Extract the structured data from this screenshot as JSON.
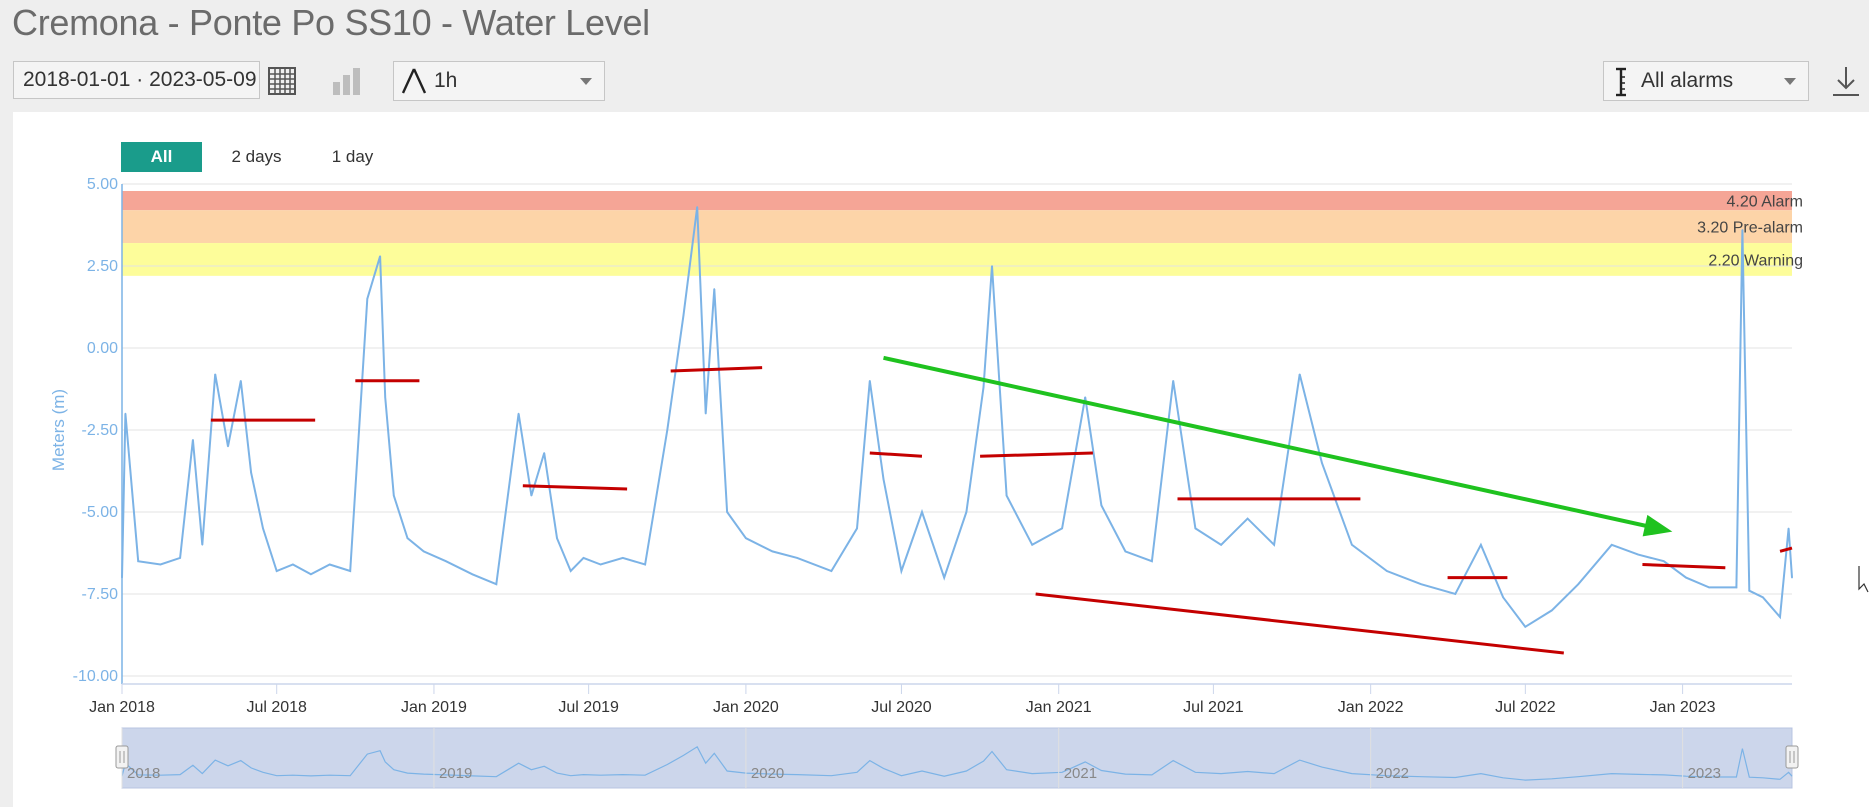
{
  "title": "Cremona - Ponte Po SS10 - Water Level",
  "toolbar": {
    "date_range": "2018-01-01 · 2023-05-09",
    "interval_label": "1h",
    "alarms_label": "All alarms",
    "icons": {
      "table": "table-view-icon",
      "chart": "bar-chart-icon",
      "delta": "delta-icon",
      "alarm": "alarm-range-icon",
      "download": "download-icon"
    }
  },
  "range_buttons": [
    {
      "label": "All",
      "active": true
    },
    {
      "label": "2 days",
      "active": false
    },
    {
      "label": "1 day",
      "active": false
    }
  ],
  "colors": {
    "series": "#7cb3e6",
    "axis": "#7cb3e6",
    "alarm_band": "#f5a596",
    "prealarm_band": "#fdd4a8",
    "warning_band": "#fdfd9a",
    "annotation_red": "#c40000",
    "annotation_green": "#1fc21f",
    "accent": "#1a9c8b"
  },
  "chart_data": {
    "type": "line",
    "title": "Cremona - Ponte Po SS10 - Water Level",
    "ylabel": "Meters (m)",
    "xlabel": "",
    "ylim": [
      -10,
      5
    ],
    "xlim": [
      "2018-01-01",
      "2023-05-09"
    ],
    "y_ticks": [
      "5.00",
      "2.50",
      "0.00",
      "-2.50",
      "-5.00",
      "-7.50",
      "-10.00"
    ],
    "x_ticks": [
      "Jan 2018",
      "Jul 2018",
      "Jan 2019",
      "Jul 2019",
      "Jan 2020",
      "Jul 2020",
      "Jan 2021",
      "Jul 2021",
      "Jan 2022",
      "Jul 2022",
      "Jan 2023"
    ],
    "grid": true,
    "thresholds": [
      {
        "label": "Alarm",
        "value_label": "4.20",
        "value": 4.2
      },
      {
        "label": "Pre-alarm",
        "value_label": "3.20",
        "value": 3.2
      },
      {
        "label": "Warning",
        "value_label": "2.20",
        "value": 2.2
      }
    ],
    "series": [
      {
        "x": [
          "2018-01-01",
          "2018-01-05",
          "2018-01-20",
          "2018-02-15",
          "2018-03-10",
          "2018-03-25",
          "2018-04-05",
          "2018-04-20",
          "2018-05-05",
          "2018-05-20",
          "2018-06-01",
          "2018-06-15",
          "2018-07-01",
          "2018-07-20",
          "2018-08-10",
          "2018-09-01",
          "2018-09-25",
          "2018-10-15",
          "2018-10-30",
          "2018-11-05",
          "2018-11-15",
          "2018-12-01",
          "2018-12-20",
          "2019-01-15",
          "2019-02-15",
          "2019-03-15",
          "2019-04-10",
          "2019-04-25",
          "2019-05-10",
          "2019-05-25",
          "2019-06-10",
          "2019-06-25",
          "2019-07-15",
          "2019-08-10",
          "2019-09-05",
          "2019-10-01",
          "2019-10-20",
          "2019-11-05",
          "2019-11-15",
          "2019-11-25",
          "2019-12-10",
          "2020-01-01",
          "2020-02-01",
          "2020-03-01",
          "2020-04-10",
          "2020-05-10",
          "2020-05-25",
          "2020-06-10",
          "2020-07-01",
          "2020-07-25",
          "2020-08-20",
          "2020-09-15",
          "2020-10-05",
          "2020-10-15",
          "2020-11-01",
          "2020-12-01",
          "2021-01-05",
          "2021-02-01",
          "2021-02-20",
          "2021-03-20",
          "2021-04-20",
          "2021-05-15",
          "2021-06-10",
          "2021-07-10",
          "2021-08-10",
          "2021-09-10",
          "2021-10-10",
          "2021-11-05",
          "2021-12-10",
          "2022-01-20",
          "2022-03-01",
          "2022-04-10",
          "2022-05-10",
          "2022-06-05",
          "2022-07-01",
          "2022-08-01",
          "2022-09-01",
          "2022-10-10",
          "2022-11-10",
          "2022-12-10",
          "2023-01-05",
          "2023-02-01",
          "2023-03-05",
          "2023-03-12",
          "2023-03-20",
          "2023-04-05",
          "2023-04-25",
          "2023-05-05",
          "2023-05-09"
        ],
        "y": [
          -7.0,
          -2.0,
          -6.5,
          -6.6,
          -6.4,
          -2.8,
          -6.0,
          -0.8,
          -3.0,
          -1.0,
          -3.8,
          -5.5,
          -6.8,
          -6.6,
          -6.9,
          -6.6,
          -6.8,
          1.5,
          2.8,
          -1.5,
          -4.5,
          -5.8,
          -6.2,
          -6.5,
          -6.9,
          -7.2,
          -2.0,
          -4.5,
          -3.2,
          -5.8,
          -6.8,
          -6.4,
          -6.6,
          -6.4,
          -6.6,
          -2.5,
          1.0,
          4.3,
          -2.0,
          1.8,
          -5.0,
          -5.8,
          -6.2,
          -6.4,
          -6.8,
          -5.5,
          -1.0,
          -4.0,
          -6.8,
          -5.0,
          -7.0,
          -5.0,
          -1.2,
          2.5,
          -4.5,
          -6.0,
          -5.5,
          -1.5,
          -4.8,
          -6.2,
          -6.5,
          -1.0,
          -5.5,
          -6.0,
          -5.2,
          -6.0,
          -0.8,
          -3.5,
          -6.0,
          -6.8,
          -7.2,
          -7.5,
          -6.0,
          -7.6,
          -8.5,
          -8.0,
          -7.2,
          -6.0,
          -6.3,
          -6.5,
          -7.0,
          -7.3,
          -7.3,
          3.6,
          -7.4,
          -7.6,
          -8.2,
          -5.5,
          -7.0
        ]
      }
    ],
    "navigator_year_labels": [
      "2018",
      "2019",
      "2020",
      "2021",
      "2022",
      "2023"
    ],
    "annotations": {
      "period_means": [
        {
          "x0": "2018-04-15",
          "x1": "2018-08-15",
          "y0": -2.2,
          "y1": -2.2
        },
        {
          "x0": "2018-10-01",
          "x1": "2018-12-15",
          "y0": -1.0,
          "y1": -1.0
        },
        {
          "x0": "2019-04-15",
          "x1": "2019-08-15",
          "y0": -4.2,
          "y1": -4.3
        },
        {
          "x0": "2019-10-05",
          "x1": "2020-01-20",
          "y0": -0.7,
          "y1": -0.6
        },
        {
          "x0": "2020-05-25",
          "x1": "2020-07-25",
          "y0": -3.2,
          "y1": -3.3
        },
        {
          "x0": "2020-10-01",
          "x1": "2021-02-10",
          "y0": -3.3,
          "y1": -3.2
        },
        {
          "x0": "2021-05-20",
          "x1": "2021-12-20",
          "y0": -4.6,
          "y1": -4.6
        },
        {
          "x0": "2022-04-01",
          "x1": "2022-06-10",
          "y0": -7.0,
          "y1": -7.0
        },
        {
          "x0": "2022-11-15",
          "x1": "2023-02-20",
          "y0": -6.6,
          "y1": -6.7
        },
        {
          "x0": "2023-04-25",
          "x1": "2023-05-09",
          "y0": -6.2,
          "y1": -6.1
        }
      ],
      "red_trend": {
        "x0": "2020-12-05",
        "x1": "2022-08-15",
        "y0": -7.5,
        "y1": -9.3
      },
      "green_trend": {
        "x0": "2020-06-10",
        "x1": "2022-12-20",
        "y0": -0.3,
        "y1": -5.6
      }
    }
  }
}
